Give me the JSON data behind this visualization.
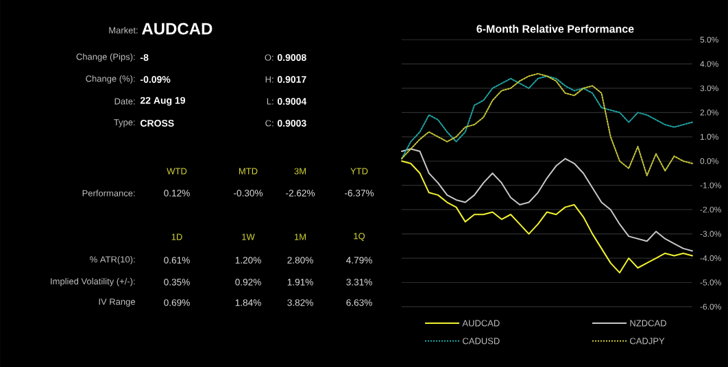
{
  "chart_data": [
    {
      "type": "other",
      "annotations": [
        "Market:",
        "AUDCAD",
        "Change (Pips):",
        "-8",
        "O:",
        "0.9008",
        "Change (%):",
        "-0.09%",
        "H:",
        "0.9017",
        "Date:",
        "22 Aug 19",
        "L:",
        "0.9004",
        "Type:",
        "CROSS",
        "C:",
        "0.9003",
        "WTD",
        "MTD",
        "3M",
        "YTD",
        "Performance:",
        "0.12%",
        "-0.30%",
        "-2.62%",
        "-6.37%",
        "1D",
        "1W",
        "1M",
        "1Q",
        "% ATR(10):",
        "0.61%",
        "1.20%",
        "2.80%",
        "4.79%",
        "Implied Volatility (+/-):",
        "0.35%",
        "0.92%",
        "1.91%",
        "3.31%",
        "IV Range",
        "0.69%",
        "1.84%",
        "3.82%",
        "6.63%"
      ]
    },
    {
      "type": "line",
      "title": "6-Month Relative Performance",
      "categories": [
        null,
        null,
        null,
        null,
        null,
        null,
        null,
        null,
        null,
        null,
        null,
        null,
        null,
        null,
        null,
        null,
        null,
        null,
        null,
        null,
        null,
        null,
        null,
        null,
        null,
        null,
        null,
        null,
        null,
        null,
        null,
        null,
        null
      ],
      "series": [
        {
          "name": "AUDCAD",
          "color": "#f2f230",
          "line_style": "solid",
          "values": [
            0,
            -0.1,
            -0.5,
            -1.3,
            -1.4,
            -1.7,
            -1.9,
            -2.5,
            -2.2,
            -2.2,
            -2.1,
            -2.4,
            -2.2,
            -2.6,
            -3.0,
            -2.6,
            -2.1,
            -2.2,
            -1.9,
            -1.8,
            -2.3,
            -3.0,
            -3.6,
            -4.2,
            -4.6,
            -4.0,
            -4.4,
            -4.2,
            -4.0,
            -3.8,
            -3.9,
            -3.8,
            -3.9
          ]
        },
        {
          "name": "NZDCAD",
          "color": "#c8c8c8",
          "line_style": "solid",
          "values": [
            0.4,
            0.5,
            0.4,
            -0.5,
            -0.9,
            -1.4,
            -1.6,
            -1.7,
            -1.4,
            -0.9,
            -0.5,
            -0.9,
            -1.5,
            -1.8,
            -1.7,
            -1.3,
            -0.7,
            -0.2,
            0.1,
            -0.1,
            -0.5,
            -1.1,
            -1.7,
            -2.0,
            -2.6,
            -3.1,
            -3.2,
            -3.3,
            -2.9,
            -3.2,
            -3.4,
            -3.6,
            -3.7
          ]
        },
        {
          "name": "CADUSD",
          "color": "#1fa3a3",
          "line_style": "dotted",
          "values": [
            0.1,
            0.8,
            1.2,
            1.9,
            1.7,
            1.2,
            0.8,
            1.2,
            2.3,
            2.5,
            3.0,
            3.2,
            3.4,
            3.2,
            3.0,
            3.4,
            3.5,
            3.4,
            3.1,
            2.9,
            3.0,
            2.8,
            2.2,
            2.1,
            2.0,
            1.6,
            2.0,
            1.9,
            1.7,
            1.5,
            1.4,
            1.5,
            1.6
          ]
        },
        {
          "name": "CADJPY",
          "color": "#c8c83a",
          "line_style": "dotted",
          "values": [
            0.1,
            0.5,
            0.9,
            1.2,
            1.0,
            0.8,
            1.0,
            1.4,
            1.5,
            1.8,
            2.5,
            2.9,
            3.0,
            3.3,
            3.5,
            3.6,
            3.5,
            3.3,
            2.8,
            2.7,
            3.0,
            3.1,
            2.8,
            1.0,
            0.0,
            -0.3,
            0.6,
            -0.6,
            0.3,
            -0.4,
            0.2,
            0.0,
            -0.1
          ]
        }
      ],
      "ylim": [
        -6,
        5
      ],
      "yticks": [
        {
          "value": 5,
          "label": "5.0%"
        },
        {
          "value": 4,
          "label": "4.0%"
        },
        {
          "value": 3,
          "label": "3.0%"
        },
        {
          "value": 2,
          "label": "2.0%"
        },
        {
          "value": 1,
          "label": "1.0%"
        },
        {
          "value": 0,
          "label": "0.0%"
        },
        {
          "value": -1,
          "label": "-1.0%"
        },
        {
          "value": -2,
          "label": "-2.0%"
        },
        {
          "value": -3,
          "label": "-3.0%"
        },
        {
          "value": -4,
          "label": "-4.0%"
        },
        {
          "value": -5,
          "label": "-5.0%"
        },
        {
          "value": -6,
          "label": "-6.0%"
        }
      ],
      "grid": "y",
      "legend": "bottom",
      "tick_labels": "y"
    }
  ]
}
